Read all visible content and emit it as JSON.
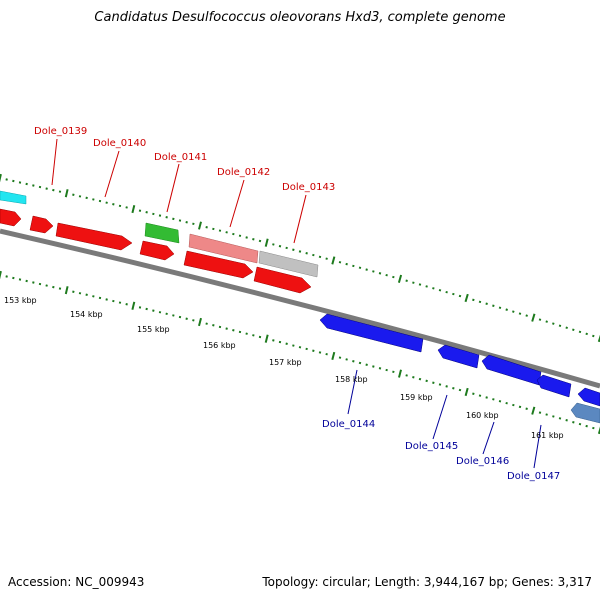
{
  "title": "Candidatus Desulfococcus oleovorans Hxd3, complete genome",
  "accession_text": "Accession: NC_009943",
  "summary_text": "Topology: circular; Length: 3,944,167 bp; Genes: 3,317",
  "scale_labels": [
    "153 kbp",
    "154 kbp",
    "155 kbp",
    "156 kbp",
    "157 kbp",
    "158 kbp",
    "159 kbp",
    "160 kbp",
    "161 kbp"
  ],
  "forward_genes": [
    "Dole_0139",
    "Dole_0140",
    "Dole_0141",
    "Dole_0142",
    "Dole_0143"
  ],
  "reverse_genes": [
    "Dole_0144",
    "Dole_0145",
    "Dole_0146",
    "Dole_0147"
  ],
  "colors": {
    "forward_label": "#cc0000",
    "reverse_label": "#000099",
    "cds_red": "#ee1111",
    "cds_blue": "#1a1aee",
    "rna_green": "#33bb33",
    "cds_pink": "#ee8888",
    "cds_grey": "#c0c0c0",
    "cds_cyan": "#22e5f0",
    "cds_steel": "#5b88c0",
    "tick_green": "#1d7a1d",
    "backbone": "#808080"
  }
}
